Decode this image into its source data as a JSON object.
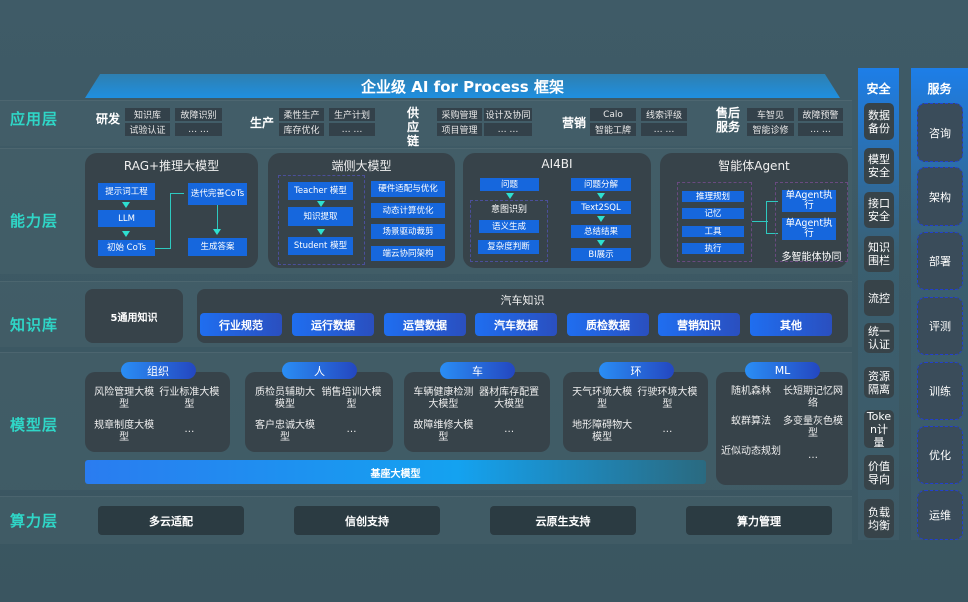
{
  "title": "企业级 AI for Process 框架",
  "layers": {
    "app": "应用层",
    "ability": "能力层",
    "knowledge": "知识库",
    "model": "模型层",
    "compute": "算力层"
  },
  "app_groups": [
    {
      "label": "研发",
      "items": [
        "知识库",
        "故障识别",
        "试验认证",
        "… …"
      ]
    },
    {
      "label": "生产",
      "items": [
        "柔性生产",
        "生产计划",
        "库存优化",
        "… …"
      ]
    },
    {
      "label": "供应链",
      "items": [
        "采购管理",
        "设计及协同",
        "项目管理",
        "… …"
      ]
    },
    {
      "label": "营销",
      "items": [
        "Calo",
        "线索评级",
        "智能工牌",
        "… …"
      ]
    },
    {
      "label": "售后服务",
      "items": [
        "车智见",
        "故障预警",
        "智能诊修",
        "… …"
      ]
    }
  ],
  "ability": {
    "rag": {
      "title": "RAG+推理大模型",
      "boxes": [
        "提示词工程",
        "LLM",
        "初始 CoTs",
        "迭代完善CoTs",
        "生成答案"
      ]
    },
    "edge": {
      "title": "端侧大模型",
      "flow": [
        "Teacher 模型",
        "知识提取",
        "Student 模型"
      ],
      "features": [
        "硬件适配与优化",
        "动态计算优化",
        "场景驱动裁剪",
        "端云协同架构"
      ]
    },
    "ai4bi": {
      "title": "AI4BI",
      "question": "问题",
      "intent": "意图识别",
      "intent_items": [
        "语义生成",
        "复杂度判断"
      ],
      "pipeline": [
        "问题分解",
        "Text2SQL",
        "总结结果",
        "BI展示"
      ]
    },
    "agent": {
      "title": "智能体Agent",
      "modules": [
        "推理规划",
        "记忆",
        "工具",
        "执行"
      ],
      "exec": [
        "单Agent执行",
        "单Agent执行"
      ],
      "multi": "多智能体协同"
    }
  },
  "knowledge": {
    "general": "5通用知识",
    "auto_title": "汽车知识",
    "auto_items": [
      "行业规范",
      "运行数据",
      "运营数据",
      "汽车数据",
      "质检数据",
      "营销知识",
      "其他"
    ]
  },
  "models": [
    {
      "label": "组织",
      "items": [
        "风险管理大模型",
        "行业标准大模型",
        "规章制度大模型",
        "…"
      ]
    },
    {
      "label": "人",
      "items": [
        "质检员辅助大模型",
        "销售培训大模型",
        "客户忠诚大模型",
        "…"
      ]
    },
    {
      "label": "车",
      "items": [
        "车辆健康检测大模型",
        "器材库存配置大模型",
        "故障维修大模型",
        "…"
      ]
    },
    {
      "label": "环",
      "items": [
        "天气环境大模型",
        "行驶环境大模型",
        "地形障碍物大模型",
        "…"
      ]
    },
    {
      "label": "ML",
      "items": [
        "随机森林",
        "长短期记忆网络",
        "蚁群算法",
        "多变量灰色模型",
        "近似动态规划",
        "…"
      ]
    }
  ],
  "base_model": "基座大模型",
  "compute": [
    "多云适配",
    "信创支持",
    "云原生支持",
    "算力管理"
  ],
  "security": {
    "title": "安全",
    "items": [
      "数据备份",
      "模型安全",
      "接口安全",
      "知识围栏",
      "流控",
      "统一认证",
      "资源隔离",
      "Token计量",
      "价值导向",
      "负载均衡"
    ]
  },
  "services": {
    "title": "服务",
    "items": [
      "咨询",
      "架构",
      "部署",
      "评测",
      "训练",
      "优化",
      "运维"
    ]
  },
  "colors": {
    "accent_teal": "#2fd6c7",
    "blue": "#1667dd",
    "card": "#37434a",
    "background": "#3e5a66"
  }
}
